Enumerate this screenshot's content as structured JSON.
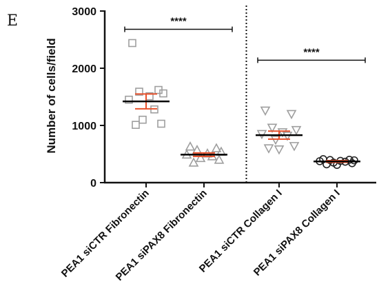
{
  "panel_label": "E",
  "chart_data": {
    "type": "scatter",
    "title": "",
    "xlabel": "",
    "ylabel": "Number of cells/field",
    "ylim": [
      0,
      3000
    ],
    "yticks": [
      0,
      1000,
      2000,
      3000
    ],
    "grid": false,
    "categories": [
      "PEA1 siCTR Fibronectin",
      "PEA1 siPAX8 Fibronectin",
      "PEA1 siCTR Collagen I",
      "PEA1 siPAX8 Collagen I"
    ],
    "series": [
      {
        "marker": "square",
        "marker_color": "#9e9e9e",
        "points": [
          2440,
          1620,
          1590,
          1560,
          1510,
          1450,
          1280,
          1100,
          1030,
          1010
        ],
        "mean": 1420,
        "error": 130
      },
      {
        "marker": "triangle-up",
        "marker_color": "#9e9e9e",
        "points": [
          630,
          600,
          570,
          540,
          510,
          490,
          460,
          430,
          400,
          350
        ],
        "mean": 490,
        "error": 30
      },
      {
        "marker": "triangle-down",
        "marker_color": "#9e9e9e",
        "points": [
          1260,
          1200,
          960,
          920,
          880,
          850,
          820,
          750,
          640,
          600,
          580
        ],
        "mean": 830,
        "error": 70
      },
      {
        "marker": "circle",
        "marker_color": "#222222",
        "points": [
          410,
          400,
          395,
          390,
          380,
          375,
          365,
          350,
          340,
          320,
          310
        ],
        "mean": 370,
        "error": 15
      }
    ],
    "mean_line_color": "#000000",
    "error_bar_color": "#e8502a",
    "divider_after_category": 1,
    "comparisons": [
      {
        "from": 0,
        "to": 1,
        "y": 2680,
        "label": "****"
      },
      {
        "from": 2,
        "to": 3,
        "y": 2140,
        "label": "****"
      }
    ]
  }
}
